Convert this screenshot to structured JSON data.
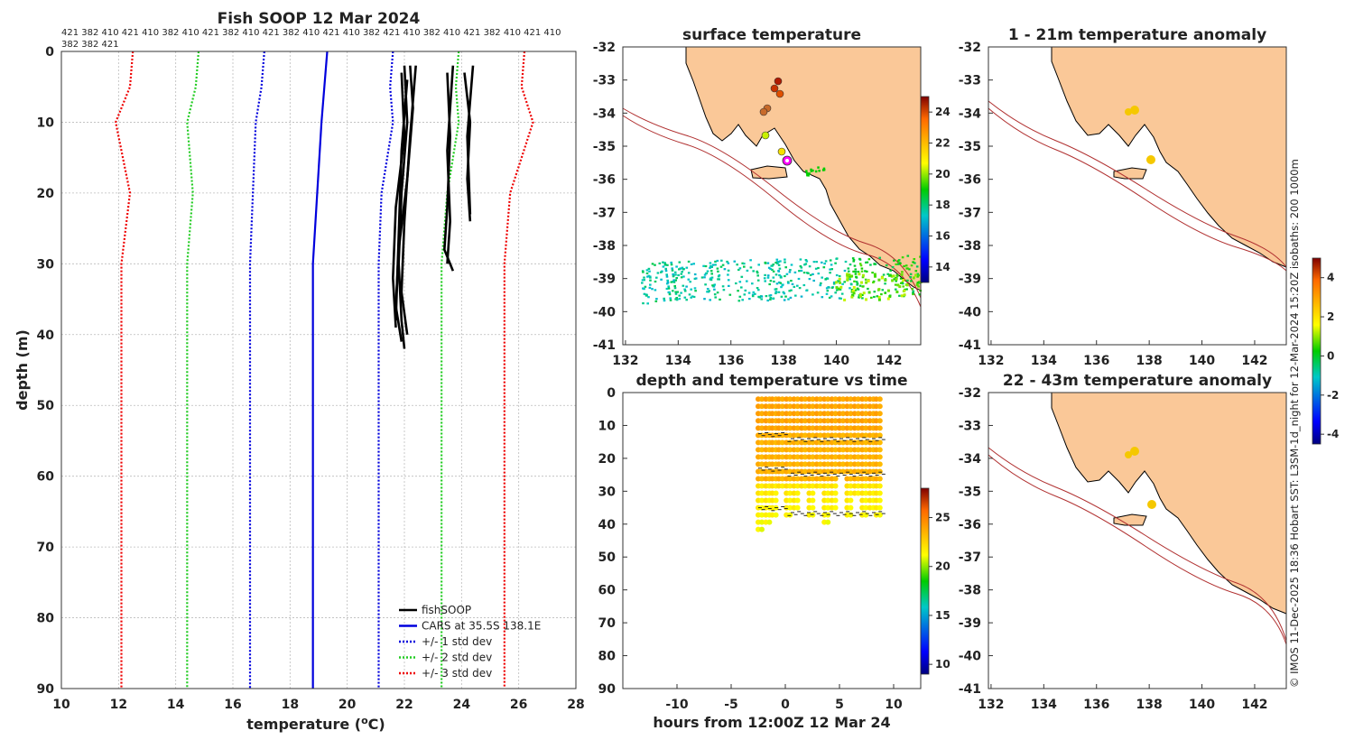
{
  "chart_data": [
    {
      "type": "line",
      "title": "Fish SOOP 12 Mar 2024",
      "xlabel": "temperature (oC)",
      "ylabel": "depth (m)",
      "xlim": [
        10,
        28
      ],
      "ylim": [
        90,
        0
      ],
      "x_ticks": [
        "10",
        "12",
        "14",
        "16",
        "18",
        "20",
        "22",
        "24",
        "26",
        "28"
      ],
      "y_ticks": [
        "0",
        "10",
        "20",
        "30",
        "40",
        "50",
        "60",
        "70",
        "80",
        "90"
      ],
      "top_labels_line1": "421 382 410 421 410 382 410 421 382 410 421 382 410 421 410 382 421 410 382 410 421 382 410 421 410",
      "top_labels_line2": "382 382 421",
      "legend": [
        {
          "label": "fishSOOP",
          "color": "#000000",
          "style": "solid"
        },
        {
          "label": "CARS at 35.5S 138.1E",
          "color": "#0000dd",
          "style": "solid"
        },
        {
          "label": "+/- 1 std dev",
          "color": "#0000dd",
          "style": "dotted"
        },
        {
          "label": "+/- 2 std dev",
          "color": "#22cc22",
          "style": "dotted"
        },
        {
          "label": "+/- 3 std dev",
          "color": "#ee0000",
          "style": "dotted"
        }
      ],
      "series": [
        {
          "name": "CARS mean",
          "color": "#0000dd",
          "style": "solid",
          "points": [
            [
              19.3,
              0
            ],
            [
              19.2,
              5
            ],
            [
              19.1,
              10
            ],
            [
              18.95,
              20
            ],
            [
              18.8,
              30
            ],
            [
              18.8,
              90
            ]
          ]
        },
        {
          "name": "-1 std",
          "color": "#0000dd",
          "style": "dotted",
          "points": [
            [
              21.6,
              0
            ],
            [
              21.5,
              5
            ],
            [
              21.6,
              10
            ],
            [
              21.2,
              20
            ],
            [
              21.1,
              30
            ],
            [
              21.1,
              90
            ]
          ]
        },
        {
          "name": "+1 std",
          "color": "#0000dd",
          "style": "dotted",
          "points": [
            [
              17.1,
              0
            ],
            [
              17.0,
              5
            ],
            [
              16.8,
              10
            ],
            [
              16.7,
              20
            ],
            [
              16.6,
              30
            ],
            [
              16.6,
              90
            ]
          ]
        },
        {
          "name": "-2 std",
          "color": "#22cc22",
          "style": "dotted",
          "points": [
            [
              23.9,
              0
            ],
            [
              23.8,
              5
            ],
            [
              23.9,
              10
            ],
            [
              23.5,
              20
            ],
            [
              23.3,
              30
            ],
            [
              23.3,
              90
            ]
          ]
        },
        {
          "name": "+2 std",
          "color": "#22cc22",
          "style": "dotted",
          "points": [
            [
              14.8,
              0
            ],
            [
              14.7,
              5
            ],
            [
              14.4,
              10
            ],
            [
              14.6,
              20
            ],
            [
              14.4,
              30
            ],
            [
              14.4,
              90
            ]
          ]
        },
        {
          "name": "-3 std",
          "color": "#ee0000",
          "style": "dotted",
          "points": [
            [
              26.2,
              0
            ],
            [
              26.1,
              5
            ],
            [
              26.5,
              10
            ],
            [
              25.7,
              20
            ],
            [
              25.5,
              30
            ],
            [
              25.5,
              90
            ]
          ]
        },
        {
          "name": "+3 std",
          "color": "#ee0000",
          "style": "dotted",
          "points": [
            [
              12.5,
              0
            ],
            [
              12.4,
              5
            ],
            [
              11.9,
              10
            ],
            [
              12.4,
              20
            ],
            [
              12.1,
              30
            ],
            [
              12.1,
              90
            ]
          ]
        }
      ],
      "fishsoop_profiles": [
        {
          "depth_max": 42,
          "temps": [
            [
              22.0,
              2
            ],
            [
              22.1,
              10
            ],
            [
              21.9,
              20
            ],
            [
              21.8,
              30
            ],
            [
              21.9,
              38
            ],
            [
              22.0,
              42
            ]
          ]
        },
        {
          "depth_max": 41,
          "temps": [
            [
              22.2,
              2
            ],
            [
              22.3,
              8
            ],
            [
              22.1,
              18
            ],
            [
              21.8,
              28
            ],
            [
              21.7,
              36
            ],
            [
              21.9,
              41
            ]
          ]
        },
        {
          "depth_max": 39,
          "temps": [
            [
              21.9,
              3
            ],
            [
              22.0,
              12
            ],
            [
              21.7,
              22
            ],
            [
              21.6,
              32
            ],
            [
              21.7,
              39
            ]
          ]
        },
        {
          "depth_max": 40,
          "temps": [
            [
              22.4,
              2
            ],
            [
              22.2,
              12
            ],
            [
              22.0,
              24
            ],
            [
              21.9,
              34
            ],
            [
              22.1,
              40
            ]
          ]
        },
        {
          "depth_max": 38,
          "temps": [
            [
              22.1,
              4
            ],
            [
              21.9,
              14
            ],
            [
              21.8,
              26
            ],
            [
              21.7,
              38
            ]
          ]
        },
        {
          "depth_max": 31,
          "temps": [
            [
              23.5,
              3
            ],
            [
              23.6,
              12
            ],
            [
              23.5,
              22
            ],
            [
              23.4,
              28
            ],
            [
              23.7,
              31
            ]
          ]
        },
        {
          "depth_max": 30,
          "temps": [
            [
              23.7,
              2
            ],
            [
              23.5,
              14
            ],
            [
              23.6,
              24
            ],
            [
              23.5,
              30
            ]
          ]
        },
        {
          "depth_max": 24,
          "temps": [
            [
              24.1,
              3
            ],
            [
              24.3,
              10
            ],
            [
              24.2,
              18
            ],
            [
              24.3,
              24
            ]
          ]
        },
        {
          "depth_max": 23,
          "temps": [
            [
              24.4,
              2
            ],
            [
              24.2,
              12
            ],
            [
              24.3,
              23
            ]
          ]
        }
      ]
    },
    {
      "type": "heatmap",
      "title": "surface temperature",
      "x_ticks": [
        "132",
        "134",
        "136",
        "138",
        "140",
        "142"
      ],
      "y_ticks": [
        "-32",
        "-33",
        "-34",
        "-35",
        "-36",
        "-37",
        "-38",
        "-39",
        "-40",
        "-41"
      ],
      "colorbar_ticks": [
        "24",
        "22",
        "20",
        "18",
        "16",
        "14"
      ],
      "colorbar_range": [
        13,
        25
      ]
    },
    {
      "type": "scatter",
      "title": "depth and temperature vs time",
      "xlabel": "hours from 12:00Z 12 Mar 24",
      "xlim": [
        -15,
        12.5
      ],
      "ylim": [
        90,
        0
      ],
      "x_ticks": [
        "-10",
        "-5",
        "0",
        "5",
        "10"
      ],
      "y_ticks": [
        "0",
        "10",
        "20",
        "30",
        "40",
        "50",
        "60",
        "70",
        "80",
        "90"
      ],
      "colorbar_ticks": [
        "25",
        "20",
        "15",
        "10"
      ],
      "colorbar_range": [
        9,
        28
      ],
      "dives": [
        -2.5,
        -1.8,
        -1.2,
        -0.6,
        0.1,
        0.8,
        1.5,
        2.2,
        2.9,
        3.6,
        4.3,
        5.0,
        5.7,
        6.4,
        7.1,
        7.8,
        8.4
      ]
    },
    {
      "type": "scatter",
      "title": "1 - 21m temperature anomaly",
      "x_ticks": [
        "132",
        "134",
        "136",
        "138",
        "140",
        "142"
      ],
      "y_ticks": [
        "-32",
        "-33",
        "-34",
        "-35",
        "-36",
        "-37",
        "-38",
        "-39",
        "-40",
        "-41"
      ]
    },
    {
      "type": "scatter",
      "title": "22 - 43m temperature anomaly",
      "x_ticks": [
        "132",
        "134",
        "136",
        "138",
        "140",
        "142"
      ],
      "y_ticks": [
        "-32",
        "-33",
        "-34",
        "-35",
        "-36",
        "-37",
        "-38",
        "-39",
        "-40",
        "-41"
      ],
      "colorbar_ticks": [
        "4",
        "2",
        "0",
        "-2",
        "-4"
      ],
      "colorbar_range": [
        -4.5,
        5
      ]
    }
  ],
  "side_caption": "© IMOS 11-Dec-2025 18:36 Hobart SST: L3SM-1d_night for 12-Mar-2024 15:20Z isobaths: 200  1000m"
}
